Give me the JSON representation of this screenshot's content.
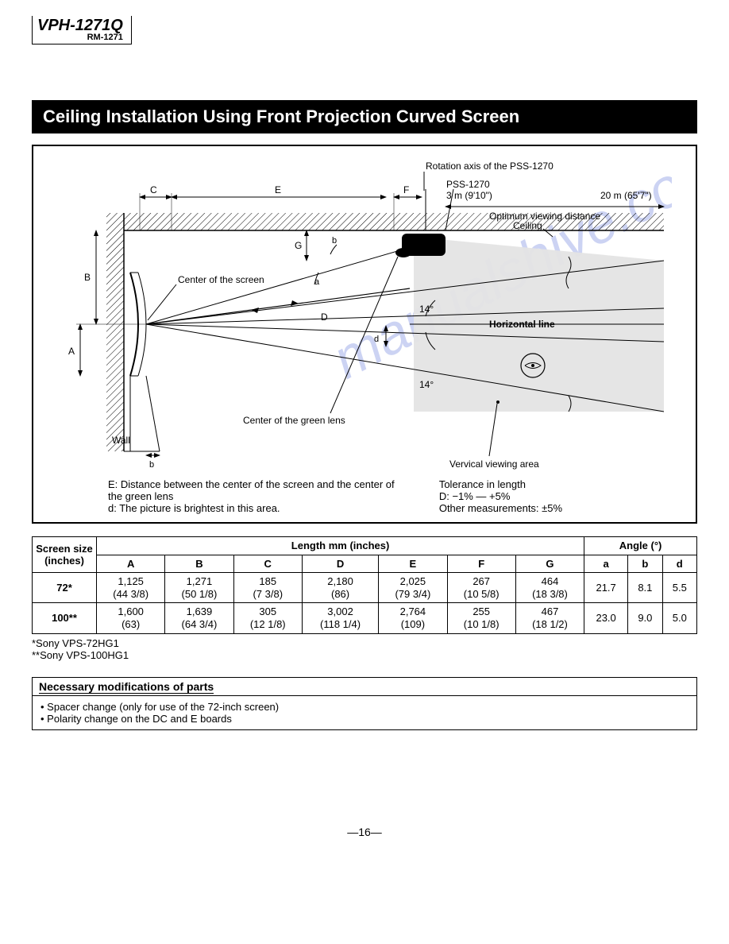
{
  "model": {
    "main": "VPH-1271Q",
    "sub": "RM-1271"
  },
  "section_title": "Ceiling Installation Using Front Projection Curved Screen",
  "diagram": {
    "labels": {
      "rotation_axis": "Rotation axis of the PSS-1270",
      "pss": "PSS-1270",
      "viewing_dist_near": "3 m (9'10\")",
      "viewing_dist_far": "20 m (65'7\")",
      "optimum": "Optimum viewing distance",
      "ceiling": "Ceiling",
      "wall": "Wall",
      "center_screen": "Center of the screen",
      "center_lens": "Center of the green lens",
      "vertical_area": "Vervical viewing area",
      "horizontal": "Horizontal line",
      "angle14": "14°",
      "A": "A",
      "B": "B",
      "C": "C",
      "D": "D",
      "E": "E",
      "F": "F",
      "G": "G",
      "a": "a",
      "b": "b",
      "d": "d"
    },
    "colors": {
      "line": "#000000",
      "fill_area": "#e4e4e4",
      "hatch": "#000000",
      "watermark": "#9ba8e8"
    },
    "style": {
      "line_width_thin": 1,
      "line_width_med": 1.5,
      "font_size_label": 12,
      "font_size_small": 11
    },
    "captions": {
      "E": "E: Distance between the center of the screen and the center of the green lens",
      "d": "d: The picture is brightest in this area.",
      "tol_title": "Tolerance in length",
      "tol_D": "D: −1% — +5%",
      "tol_other": "Other measurements: ±5%"
    }
  },
  "table": {
    "header_group_length": "Length    mm (inches)",
    "header_group_angle": "Angle (°)",
    "header_screen": "Screen size (inches)",
    "cols_len": [
      "A",
      "B",
      "C",
      "D",
      "E",
      "F",
      "G"
    ],
    "cols_ang": [
      "a",
      "b",
      "d"
    ],
    "rows": [
      {
        "size": "72*",
        "len": [
          "1,125\n(44 3/8)",
          "1,271\n(50 1/8)",
          "185\n(7 3/8)",
          "2,180\n(86)",
          "2,025\n(79 3/4)",
          "267\n(10 5/8)",
          "464\n(18 3/8)"
        ],
        "ang": [
          "21.7",
          "8.1",
          "5.5"
        ]
      },
      {
        "size": "100**",
        "len": [
          "1,600\n(63)",
          "1,639\n(64 3/4)",
          "305\n(12 1/8)",
          "3,002\n(118 1/4)",
          "2,764\n(109)",
          "255\n(10 1/8)",
          "467\n(18 1/2)"
        ],
        "ang": [
          "23.0",
          "9.0",
          "5.0"
        ]
      }
    ]
  },
  "footnotes": [
    "*Sony VPS-72HG1",
    "**Sony VPS-100HG1"
  ],
  "mods": {
    "header": "Necessary modifications of parts",
    "items": [
      "Spacer change (only for use of the 72-inch screen)",
      "Polarity change on the DC and E boards"
    ]
  },
  "page_number": "—16—"
}
